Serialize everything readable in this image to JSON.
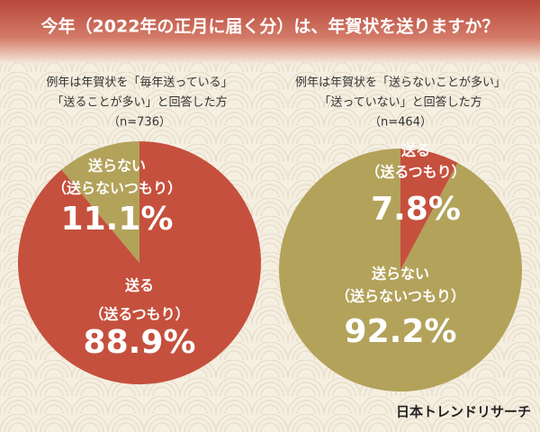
{
  "title": "今年（2022年の正月に届く分）は、年賀状を送りますか？",
  "footer": "日本トレンドリサーチ",
  "chart_data": [
    {
      "type": "pie",
      "subtitle": [
        "例年は年賀状を「毎年送っている」",
        "「送ることが多い」と回答した方",
        "（n=736）"
      ],
      "categories": [
        "送る",
        "送らない"
      ],
      "sublabels": [
        "（送るつもり）",
        "（送らないつもり）"
      ],
      "values": [
        88.9,
        11.1
      ],
      "value_labels": [
        "88.9%",
        "11.1%"
      ],
      "colors": [
        "#c5503d",
        "#b3a25a"
      ]
    },
    {
      "type": "pie",
      "subtitle": [
        "例年は年賀状を「送らないことが多い」",
        "「送っていない」と回答した方",
        "（n=464）"
      ],
      "categories": [
        "送る",
        "送らない"
      ],
      "sublabels": [
        "（送るつもり）",
        "（送らないつもり）"
      ],
      "values": [
        7.8,
        92.2
      ],
      "value_labels": [
        "7.8%",
        "92.2%"
      ],
      "colors": [
        "#c5503d",
        "#b3a25a"
      ]
    }
  ]
}
